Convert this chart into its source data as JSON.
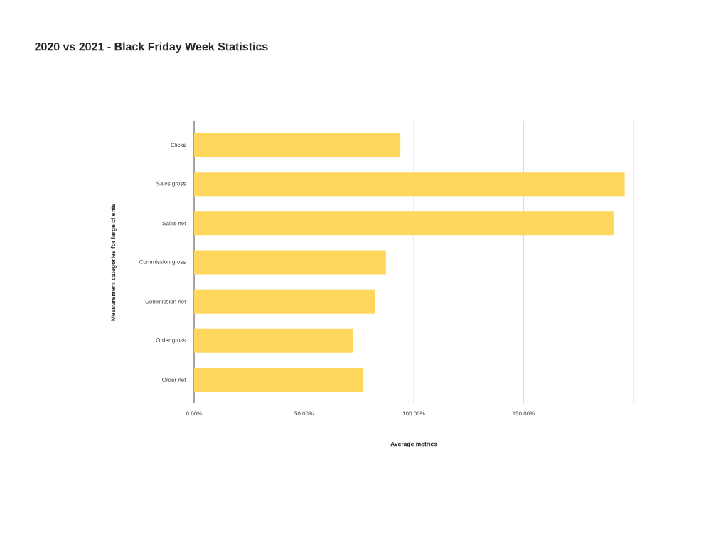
{
  "chart_data": {
    "type": "bar",
    "orientation": "horizontal",
    "title": "2020 vs 2021 - Black Friday Week Statistics",
    "xlabel": "Average metrics",
    "ylabel": "Measurement categories for large clients",
    "categories": [
      "Clicks",
      "Sales gross",
      "Sales net",
      "Commission gross",
      "Commission net",
      "Order gross",
      "Order net"
    ],
    "values": [
      93.9,
      196.0,
      190.9,
      87.3,
      82.4,
      72.3,
      76.8
    ],
    "color": "#ffd75c",
    "xlim": [
      0,
      200
    ],
    "xticks": [
      {
        "value": 0,
        "label": "0.00%"
      },
      {
        "value": 50,
        "label": "50.00%"
      },
      {
        "value": 100,
        "label": "100.00%"
      },
      {
        "value": 150,
        "label": "150.00%"
      },
      {
        "value": 200,
        "label": null
      }
    ],
    "grid": "x"
  }
}
